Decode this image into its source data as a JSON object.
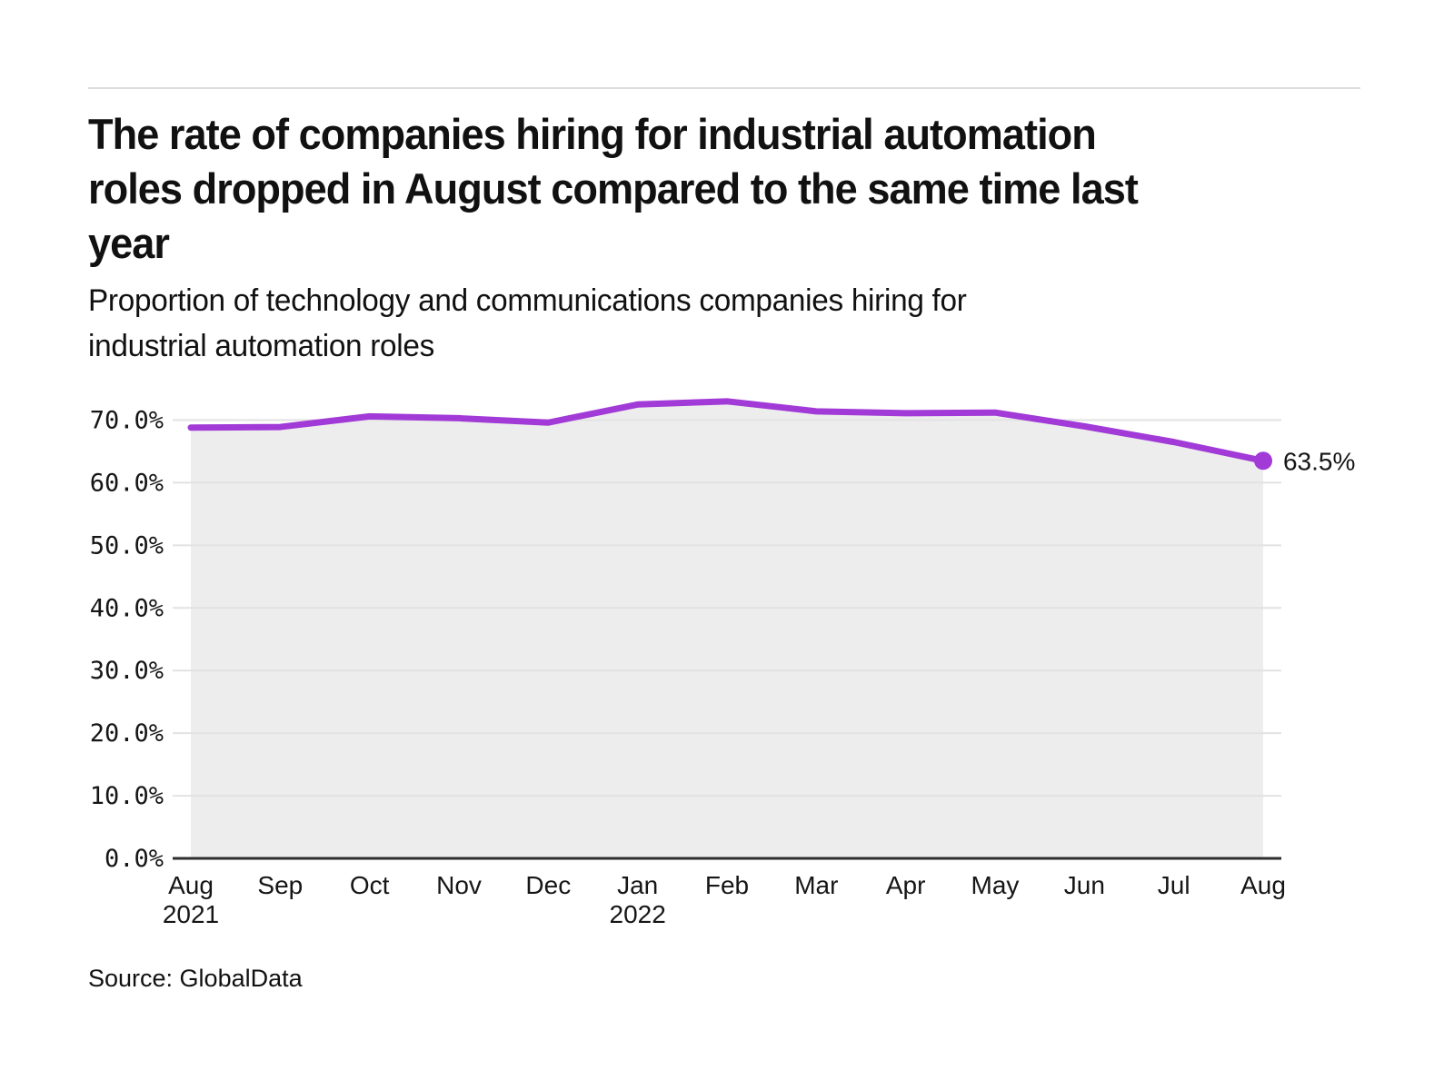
{
  "page": {
    "title_lines": [
      "The rate of companies hiring for industrial automation",
      "roles dropped in August compared to the same time last",
      "year"
    ],
    "subtitle_lines": [
      "Proportion of technology and communications companies hiring for",
      "industrial automation roles"
    ],
    "source": "Source: GlobalData"
  },
  "chart_data": {
    "type": "area",
    "title": "Proportion of technology and communications companies hiring for industrial automation roles",
    "x": [
      "Aug 2021",
      "Sep 2021",
      "Oct 2021",
      "Nov 2021",
      "Dec 2021",
      "Jan 2022",
      "Feb 2022",
      "Mar 2022",
      "Apr 2022",
      "May 2022",
      "Jun 2022",
      "Jul 2022",
      "Aug 2022"
    ],
    "values": [
      68.8,
      68.9,
      70.6,
      70.3,
      69.6,
      72.5,
      73.0,
      71.4,
      71.1,
      71.2,
      69.0,
      66.5,
      63.5
    ],
    "x_ticks": [
      {
        "label": "Aug",
        "year": "2021"
      },
      {
        "label": "Sep"
      },
      {
        "label": "Oct"
      },
      {
        "label": "Nov"
      },
      {
        "label": "Dec"
      },
      {
        "label": "Jan",
        "year": "2022"
      },
      {
        "label": "Feb"
      },
      {
        "label": "Mar"
      },
      {
        "label": "Apr"
      },
      {
        "label": "May"
      },
      {
        "label": "Jun"
      },
      {
        "label": "Jul"
      },
      {
        "label": "Aug"
      }
    ],
    "y_ticks": [
      {
        "value": 0,
        "label": "0.0%"
      },
      {
        "value": 10,
        "label": "10.0%"
      },
      {
        "value": 20,
        "label": "20.0%"
      },
      {
        "value": 30,
        "label": "30.0%"
      },
      {
        "value": 40,
        "label": "40.0%"
      },
      {
        "value": 50,
        "label": "50.0%"
      },
      {
        "value": 60,
        "label": "60.0%"
      },
      {
        "value": 70,
        "label": "70.0%"
      }
    ],
    "ylim": [
      0,
      70
    ],
    "grid": true,
    "legend": false,
    "end_label": "63.5%",
    "colors": {
      "line": "#A13AD6",
      "area_fill": "#EDEDED",
      "grid": "#E2E2E2",
      "axis": "#2E2E2E",
      "text": "#161616"
    }
  }
}
